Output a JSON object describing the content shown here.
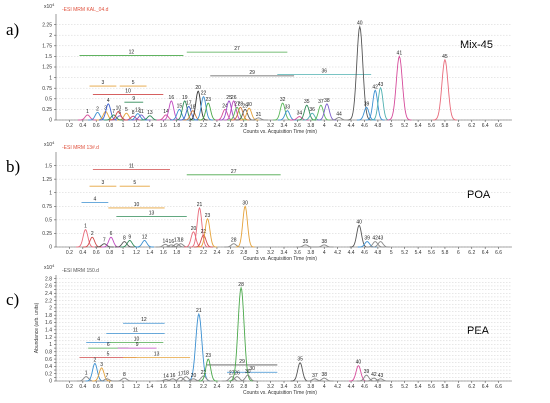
{
  "figure": {
    "background": "#ffffff"
  },
  "chart_data": [
    {
      "type": "line",
      "panel_label": "a)",
      "name": "Mix-45",
      "file": "-ESI MRM KAL_04.d",
      "file_color": "#e0503c",
      "exp_label": "x10",
      "exp_power": "4",
      "ylabel": "",
      "xlabel": "Counts vs. Acquisition Time (min)",
      "xlim": [
        0,
        6.8
      ],
      "ylim": [
        0,
        2.5
      ],
      "xticks": [
        "0.2",
        "0.4",
        "0.6",
        "0.8",
        "1",
        "1.2",
        "1.4",
        "1.6",
        "1.8",
        "2",
        "2.2",
        "2.4",
        "2.6",
        "2.8",
        "3",
        "3.2",
        "3.4",
        "3.6",
        "3.8",
        "4",
        "4.2",
        "4.4",
        "4.6",
        "4.8",
        "5",
        "5.2",
        "5.4",
        "5.6",
        "5.8",
        "6",
        "6.2",
        "6.4",
        "6.6"
      ],
      "yticks": [
        "0",
        "0.25",
        "0.5",
        "0.75",
        "1",
        "1.25",
        "1.5",
        "1.75",
        "2",
        "2.25"
      ],
      "peaks": [
        {
          "label": "1",
          "rt": 0.47,
          "height": 0.12,
          "color": "#d64a9a"
        },
        {
          "label": "2",
          "rt": 0.62,
          "height": 0.18,
          "color": "#3a8fd1"
        },
        {
          "label": "3",
          "rt": 0.74,
          "height": 0.2,
          "color": "#e5a23a"
        },
        {
          "label": "4",
          "rt": 0.78,
          "height": 0.38,
          "color": "#3c5fd0"
        },
        {
          "label": "5",
          "rt": 1.05,
          "height": 0.16,
          "color": "#e5a23a"
        },
        {
          "label": "6",
          "rt": 0.95,
          "height": 0.1,
          "color": "#7a5cc9"
        },
        {
          "label": "7",
          "rt": 0.86,
          "height": 0.12,
          "color": "#2e8b57"
        },
        {
          "label": "8",
          "rt": 1.15,
          "height": 0.09,
          "color": "#c7467a"
        },
        {
          "label": "10",
          "rt": 0.93,
          "height": 0.2,
          "color": "#d04a4a"
        },
        {
          "label": "11",
          "rt": 1.27,
          "height": 0.12,
          "color": "#7a5cc9"
        },
        {
          "label": "12",
          "rt": 1.22,
          "height": 0.15,
          "color": "#3a8fd1"
        },
        {
          "label": "13",
          "rt": 1.4,
          "height": 0.1,
          "color": "#2e8b57"
        },
        {
          "label": "14",
          "rt": 1.64,
          "height": 0.12,
          "color": "#d64a9a"
        },
        {
          "label": "16",
          "rt": 1.72,
          "height": 0.45,
          "color": "#c04ac0"
        },
        {
          "label": "15",
          "rt": 1.84,
          "height": 0.25,
          "color": "#3a8fd1"
        },
        {
          "label": "19",
          "rt": 1.92,
          "height": 0.45,
          "color": "#2e8b57"
        },
        {
          "label": "17",
          "rt": 1.98,
          "height": 0.32,
          "color": "#3c5fd0"
        },
        {
          "label": "18",
          "rt": 2.04,
          "height": 0.22,
          "color": "#d07a3a"
        },
        {
          "label": "20",
          "rt": 2.12,
          "height": 0.68,
          "color": "#333333"
        },
        {
          "label": "22",
          "rt": 2.2,
          "height": 0.55,
          "color": "#3a8fd1"
        },
        {
          "label": "23",
          "rt": 2.27,
          "height": 0.4,
          "color": "#4aa84a"
        },
        {
          "label": "24",
          "rt": 2.52,
          "height": 0.25,
          "color": "#d64a9a"
        },
        {
          "label": "25",
          "rt": 2.58,
          "height": 0.45,
          "color": "#9a4ac8"
        },
        {
          "label": "26",
          "rt": 2.65,
          "height": 0.45,
          "color": "#c04ac0"
        },
        {
          "label": "27",
          "rt": 2.7,
          "height": 0.3,
          "color": "#5ab85a"
        },
        {
          "label": "28",
          "rt": 2.75,
          "height": 0.3,
          "color": "#d07a3a"
        },
        {
          "label": "29",
          "rt": 2.82,
          "height": 0.25,
          "color": "#555555"
        },
        {
          "label": "30",
          "rt": 2.88,
          "height": 0.28,
          "color": "#e5a23a"
        },
        {
          "label": "31",
          "rt": 3.02,
          "height": 0.05,
          "color": "#888888"
        },
        {
          "label": "32",
          "rt": 3.38,
          "height": 0.4,
          "color": "#5ab85a"
        },
        {
          "label": "33",
          "rt": 3.45,
          "height": 0.22,
          "color": "#3a8fd1"
        },
        {
          "label": "34",
          "rt": 3.63,
          "height": 0.08,
          "color": "#d64a9a"
        },
        {
          "label": "35",
          "rt": 3.74,
          "height": 0.35,
          "color": "#2e8b57"
        },
        {
          "label": "36",
          "rt": 3.82,
          "height": 0.16,
          "color": "#4fb0b0"
        },
        {
          "label": "37",
          "rt": 3.95,
          "height": 0.35,
          "color": "#5ab85a"
        },
        {
          "label": "38",
          "rt": 4.04,
          "height": 0.38,
          "color": "#7a5cc9"
        },
        {
          "label": "44",
          "rt": 4.22,
          "height": 0.06,
          "color": "#888888"
        },
        {
          "label": "40",
          "rt": 4.53,
          "height": 2.2,
          "color": "#555555"
        },
        {
          "label": "39",
          "rt": 4.63,
          "height": 0.3,
          "color": "#3a8fd1"
        },
        {
          "label": "42",
          "rt": 4.76,
          "height": 0.7,
          "color": "#3a8fd1"
        },
        {
          "label": "43",
          "rt": 4.84,
          "height": 0.76,
          "color": "#4fb0b0"
        },
        {
          "label": "41",
          "rt": 5.12,
          "height": 1.5,
          "color": "#d64a9a"
        },
        {
          "label": "45",
          "rt": 5.8,
          "height": 1.42,
          "color": "#e86a7a"
        }
      ],
      "brackets": [
        {
          "label": "12",
          "start": 0.35,
          "end": 1.9,
          "level": 1.52,
          "color": "#4aa84a"
        },
        {
          "label": "27",
          "start": 1.95,
          "end": 3.45,
          "level": 1.6,
          "color": "#4aa84a"
        },
        {
          "label": "29",
          "start": 2.3,
          "end": 3.55,
          "level": 1.04,
          "color": "#555555"
        },
        {
          "label": "36",
          "start": 3.3,
          "end": 4.7,
          "level": 1.07,
          "color": "#4fb0b0"
        },
        {
          "label": "3",
          "start": 0.5,
          "end": 0.9,
          "level": 0.8,
          "color": "#e5a23a"
        },
        {
          "label": "5",
          "start": 0.95,
          "end": 1.35,
          "level": 0.8,
          "color": "#e5a23a"
        },
        {
          "label": "10",
          "start": 0.55,
          "end": 1.6,
          "level": 0.6,
          "color": "#d04a4a"
        },
        {
          "label": "9",
          "start": 1.02,
          "end": 1.3,
          "level": 0.42,
          "color": "#2e8b57"
        }
      ]
    },
    {
      "type": "line",
      "panel_label": "b)",
      "name": "POA",
      "file": "-ESI MRM 13#.d",
      "file_color": "#e0503c",
      "exp_label": "x10",
      "exp_power": "4",
      "ylabel": "",
      "xlabel": "Counts vs. Acquisition Time (min)",
      "xlim": [
        0,
        6.8
      ],
      "ylim": [
        0,
        1.75
      ],
      "xticks": [
        "0.2",
        "0.4",
        "0.6",
        "0.8",
        "1",
        "1.2",
        "1.4",
        "1.6",
        "1.8",
        "2",
        "2.2",
        "2.4",
        "2.6",
        "2.8",
        "3",
        "3.2",
        "3.4",
        "3.6",
        "3.8",
        "4",
        "4.2",
        "4.4",
        "4.6",
        "4.8",
        "5",
        "5.2",
        "5.4",
        "5.6",
        "5.8",
        "6",
        "6.2",
        "6.4",
        "6.6"
      ],
      "yticks": [
        "0",
        "0.25",
        "0.5",
        "0.75",
        "1",
        "1.25",
        "1.5"
      ],
      "peaks": [
        {
          "label": "1",
          "rt": 0.44,
          "height": 0.32,
          "color": "#e86a7a"
        },
        {
          "label": "2",
          "rt": 0.54,
          "height": 0.18,
          "color": "#d04a4a"
        },
        {
          "label": "7",
          "rt": 0.72,
          "height": 0.06,
          "color": "#555555"
        },
        {
          "label": "6",
          "rt": 0.82,
          "height": 0.18,
          "color": "#c04ac0"
        },
        {
          "label": "8",
          "rt": 1.02,
          "height": 0.1,
          "color": "#555555"
        },
        {
          "label": "9",
          "rt": 1.1,
          "height": 0.12,
          "color": "#2e8b57"
        },
        {
          "label": "12",
          "rt": 1.32,
          "height": 0.12,
          "color": "#3a8fd1"
        },
        {
          "label": "14",
          "rt": 1.63,
          "height": 0.05,
          "color": "#888888"
        },
        {
          "label": "16",
          "rt": 1.72,
          "height": 0.04,
          "color": "#888888"
        },
        {
          "label": "17",
          "rt": 1.8,
          "height": 0.06,
          "color": "#888888"
        },
        {
          "label": "18",
          "rt": 1.86,
          "height": 0.06,
          "color": "#888888"
        },
        {
          "label": "20",
          "rt": 2.05,
          "height": 0.28,
          "color": "#e86a7a"
        },
        {
          "label": "21",
          "rt": 2.14,
          "height": 0.72,
          "color": "#e86a7a"
        },
        {
          "label": "22",
          "rt": 2.2,
          "height": 0.22,
          "color": "#d04a4a"
        },
        {
          "label": "23",
          "rt": 2.26,
          "height": 0.52,
          "color": "#e5a23a"
        },
        {
          "label": "28",
          "rt": 2.65,
          "height": 0.06,
          "color": "#888888"
        },
        {
          "label": "30",
          "rt": 2.82,
          "height": 0.75,
          "color": "#e5a23a"
        },
        {
          "label": "35",
          "rt": 3.72,
          "height": 0.04,
          "color": "#888888"
        },
        {
          "label": "38",
          "rt": 4.0,
          "height": 0.04,
          "color": "#888888"
        },
        {
          "label": "40",
          "rt": 4.52,
          "height": 0.4,
          "color": "#555555"
        },
        {
          "label": "39",
          "rt": 4.64,
          "height": 0.1,
          "color": "#3a8fd1"
        },
        {
          "label": "42",
          "rt": 4.76,
          "height": 0.1,
          "color": "#888888"
        },
        {
          "label": "43",
          "rt": 4.84,
          "height": 0.1,
          "color": "#888888"
        }
      ],
      "brackets": [
        {
          "label": "11",
          "start": 0.55,
          "end": 1.7,
          "level": 1.43,
          "color": "#d04a4a"
        },
        {
          "label": "27",
          "start": 1.95,
          "end": 3.35,
          "level": 1.33,
          "color": "#4aa84a"
        },
        {
          "label": "3",
          "start": 0.5,
          "end": 0.9,
          "level": 1.12,
          "color": "#e5a23a"
        },
        {
          "label": "5",
          "start": 0.95,
          "end": 1.4,
          "level": 1.12,
          "color": "#e5a23a"
        },
        {
          "label": "4",
          "start": 0.38,
          "end": 0.78,
          "level": 0.82,
          "color": "#3a8fd1"
        },
        {
          "label": "10",
          "start": 0.78,
          "end": 1.62,
          "level": 0.72,
          "color": "#e5a23a"
        },
        {
          "label": "13",
          "start": 0.9,
          "end": 1.95,
          "level": 0.56,
          "color": "#2e8b57"
        }
      ]
    },
    {
      "type": "line",
      "panel_label": "c)",
      "name": "PEA",
      "file": "-ESI MRM 150.d",
      "file_color": "#555555",
      "exp_label": "x10",
      "exp_power": "4",
      "ylabel": "Abundance (arb. units)",
      "xlabel": "Counts vs. Acquisition Time (min)",
      "xlim": [
        0,
        6.8
      ],
      "ylim": [
        0,
        2.9
      ],
      "xticks": [
        "0.2",
        "0.4",
        "0.6",
        "0.8",
        "1",
        "1.2",
        "1.4",
        "1.6",
        "1.8",
        "2",
        "2.2",
        "2.4",
        "2.6",
        "2.8",
        "3",
        "3.2",
        "3.4",
        "3.6",
        "3.8",
        "4",
        "4.2",
        "4.4",
        "4.6",
        "4.8",
        "5",
        "5.2",
        "5.4",
        "5.6",
        "5.8",
        "6",
        "6.2",
        "6.4",
        "6.6"
      ],
      "yticks": [
        "0",
        "0.1",
        "0.2",
        "0.3",
        "0.4",
        "0.5",
        "0.6",
        "0.7",
        "0.8",
        "0.9",
        "1",
        "1.1",
        "1.2",
        "1.3",
        "1.4",
        "1.5",
        "1.6",
        "1.7",
        "1.8",
        "1.9",
        "2",
        "2.1",
        "2.2",
        "2.3",
        "2.4",
        "2.5",
        "2.6",
        "2.7",
        "2.8"
      ],
      "peaks": [
        {
          "label": "1",
          "rt": 0.45,
          "height": 0.12,
          "color": "#888888"
        },
        {
          "label": "2",
          "rt": 0.58,
          "height": 0.48,
          "color": "#3a8fd1"
        },
        {
          "label": "3",
          "rt": 0.68,
          "height": 0.36,
          "color": "#e5a23a"
        },
        {
          "label": "7",
          "rt": 0.76,
          "height": 0.06,
          "color": "#888888"
        },
        {
          "label": "8",
          "rt": 1.02,
          "height": 0.08,
          "color": "#888888"
        },
        {
          "label": "14",
          "rt": 1.64,
          "height": 0.04,
          "color": "#888888"
        },
        {
          "label": "16",
          "rt": 1.74,
          "height": 0.06,
          "color": "#888888"
        },
        {
          "label": "17",
          "rt": 1.86,
          "height": 0.1,
          "color": "#888888"
        },
        {
          "label": "18",
          "rt": 1.94,
          "height": 0.12,
          "color": "#888888"
        },
        {
          "label": "21",
          "rt": 2.13,
          "height": 1.83,
          "color": "#3a8fd1"
        },
        {
          "label": "20",
          "rt": 2.05,
          "height": 0.06,
          "color": "#888888"
        },
        {
          "label": "22",
          "rt": 2.2,
          "height": 0.14,
          "color": "#888888"
        },
        {
          "label": "23",
          "rt": 2.27,
          "height": 0.6,
          "color": "#4aa84a"
        },
        {
          "label": "27",
          "rt": 2.62,
          "height": 0.12,
          "color": "#888888"
        },
        {
          "label": "26",
          "rt": 2.7,
          "height": 0.12,
          "color": "#888888"
        },
        {
          "label": "28",
          "rt": 2.76,
          "height": 2.55,
          "color": "#4aa84a"
        },
        {
          "label": "30",
          "rt": 2.86,
          "height": 0.16,
          "color": "#888888"
        },
        {
          "label": "35",
          "rt": 3.64,
          "height": 0.5,
          "color": "#555555"
        },
        {
          "label": "37",
          "rt": 3.86,
          "height": 0.06,
          "color": "#888888"
        },
        {
          "label": "38",
          "rt": 4.0,
          "height": 0.08,
          "color": "#888888"
        },
        {
          "label": "40",
          "rt": 4.51,
          "height": 0.42,
          "color": "#d64a9a"
        },
        {
          "label": "39",
          "rt": 4.63,
          "height": 0.16,
          "color": "#888888"
        },
        {
          "label": "42",
          "rt": 4.74,
          "height": 0.08,
          "color": "#888888"
        },
        {
          "label": "43",
          "rt": 4.84,
          "height": 0.06,
          "color": "#888888"
        }
      ],
      "brackets": [
        {
          "label": "12",
          "start": 1.0,
          "end": 1.62,
          "level": 1.58,
          "color": "#3a8fd1"
        },
        {
          "label": "11",
          "start": 0.75,
          "end": 1.62,
          "level": 1.3,
          "color": "#3a8fd1"
        },
        {
          "label": "4",
          "start": 0.45,
          "end": 0.82,
          "level": 1.05,
          "color": "#3a8fd1"
        },
        {
          "label": "10",
          "start": 0.8,
          "end": 1.6,
          "level": 1.05,
          "color": "#4aa84a"
        },
        {
          "label": "6",
          "start": 0.48,
          "end": 1.08,
          "level": 0.9,
          "color": "#4aa84a"
        },
        {
          "label": "9",
          "start": 0.92,
          "end": 1.5,
          "level": 0.9,
          "color": "#c04ac0"
        },
        {
          "label": "5",
          "start": 0.35,
          "end": 1.2,
          "level": 0.64,
          "color": "#d04a4a"
        },
        {
          "label": "13",
          "start": 1.0,
          "end": 2.0,
          "level": 0.64,
          "color": "#e5a23a"
        },
        {
          "label": "29",
          "start": 2.25,
          "end": 3.3,
          "level": 0.44,
          "color": "#555555"
        },
        {
          "label": "30",
          "start": 2.55,
          "end": 3.3,
          "level": 0.24,
          "color": "#3a8fd1"
        }
      ]
    }
  ]
}
